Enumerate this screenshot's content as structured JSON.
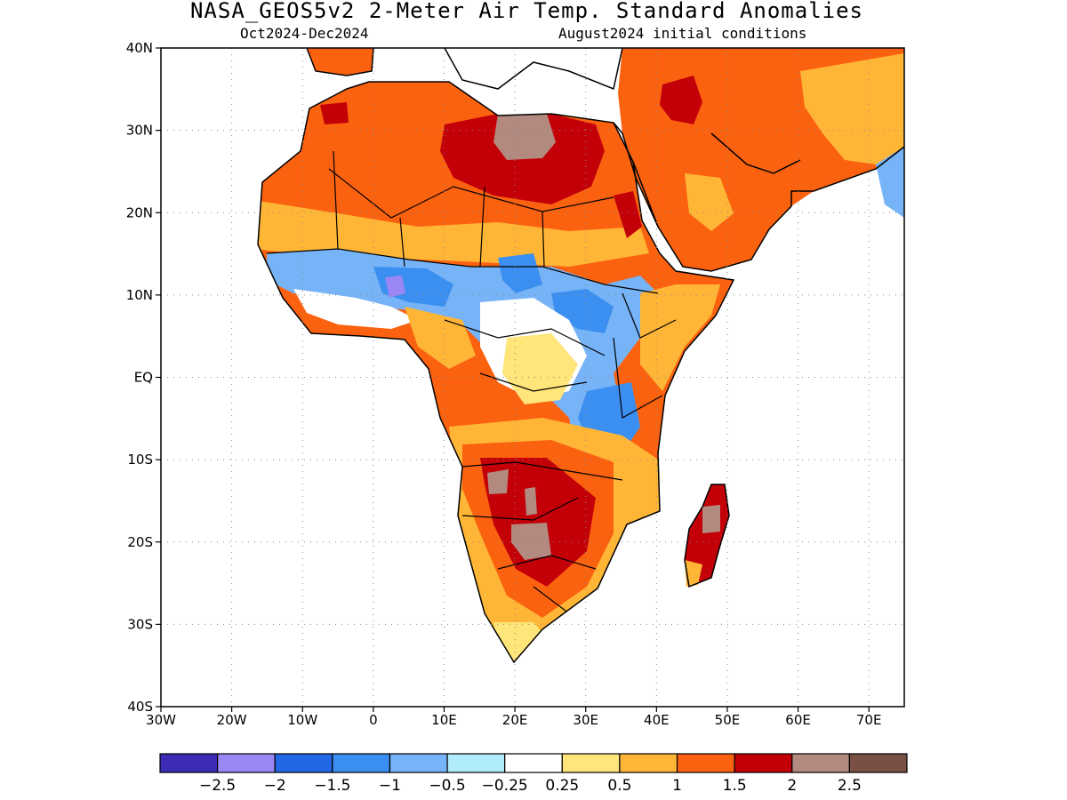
{
  "title": "NASA_GEOS5v2 2-Meter Air Temp. Standard Anomalies",
  "subtitle_left": "Oct2024-Dec2024",
  "subtitle_right": "August2024 initial conditions",
  "map": {
    "region": "Africa",
    "lon_range": [
      -30,
      75
    ],
    "lat_range": [
      -40,
      40
    ],
    "gridlines": "dotted",
    "lat_ticks": [
      {
        "value": 40,
        "label": "40N"
      },
      {
        "value": 30,
        "label": "30N"
      },
      {
        "value": 20,
        "label": "20N"
      },
      {
        "value": 10,
        "label": "10N"
      },
      {
        "value": 0,
        "label": "EQ"
      },
      {
        "value": -10,
        "label": "10S"
      },
      {
        "value": -20,
        "label": "20S"
      },
      {
        "value": -30,
        "label": "30S"
      },
      {
        "value": -40,
        "label": "40S"
      }
    ],
    "lon_ticks": [
      {
        "value": -30,
        "label": "30W"
      },
      {
        "value": -20,
        "label": "20W"
      },
      {
        "value": -10,
        "label": "10W"
      },
      {
        "value": 0,
        "label": "0"
      },
      {
        "value": 10,
        "label": "10E"
      },
      {
        "value": 20,
        "label": "20E"
      },
      {
        "value": 30,
        "label": "30E"
      },
      {
        "value": 40,
        "label": "40E"
      },
      {
        "value": 50,
        "label": "50E"
      },
      {
        "value": 60,
        "label": "60E"
      },
      {
        "value": 70,
        "label": "70E"
      }
    ]
  },
  "colorbar": {
    "colors": [
      "#3c2bb5",
      "#9a86f5",
      "#2366e6",
      "#3b8ff0",
      "#76b3f7",
      "#b1ecfa",
      "#ffffff",
      "#ffe57a",
      "#ffb637",
      "#fb6210",
      "#c30008",
      "#b28a80",
      "#7a5044"
    ],
    "labels": [
      "-2.5",
      "-2",
      "-1.5",
      "-1",
      "-0.5",
      "-0.25",
      "0.25",
      "0.5",
      "1",
      "1.5",
      "2",
      "2.5"
    ]
  },
  "colors": {
    "land_outline": "#000000",
    "grid": "#888888",
    "strong_warm": "#c30008",
    "warm": "#fb6210",
    "cool": "#3b8ff0"
  }
}
